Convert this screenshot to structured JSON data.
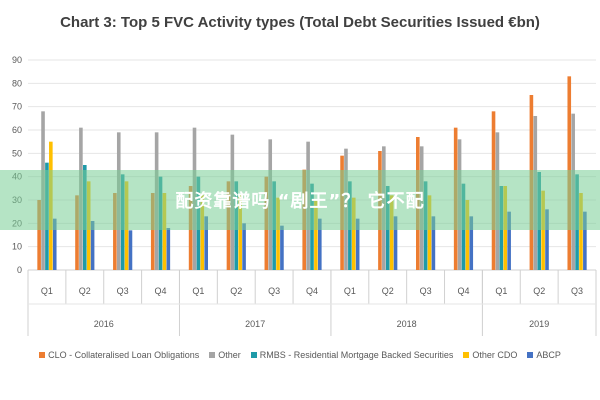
{
  "chart_data": {
    "type": "bar",
    "title": "Chart 3: Top 5 FVC Activity types (Total Debt Securities Issued €bn)",
    "categories": [
      "Q1",
      "Q2",
      "Q3",
      "Q4",
      "Q1",
      "Q2",
      "Q3",
      "Q4",
      "Q1",
      "Q2",
      "Q3",
      "Q4",
      "Q1",
      "Q2",
      "Q3"
    ],
    "years": [
      {
        "label": "2016",
        "span": 4
      },
      {
        "label": "2017",
        "span": 4
      },
      {
        "label": "2018",
        "span": 4
      },
      {
        "label": "2019",
        "span": 3
      }
    ],
    "ylim": [
      0,
      90
    ],
    "yticks": [
      0,
      10,
      20,
      30,
      40,
      50,
      60,
      70,
      80,
      90
    ],
    "grid": true,
    "legend_position": "bottom",
    "series": [
      {
        "name": "CLO - Collateralised Loan Obligations",
        "color": "#ED7D31",
        "values": [
          30,
          32,
          33,
          33,
          36,
          38,
          40,
          43,
          49,
          51,
          57,
          61,
          68,
          75,
          83
        ]
      },
      {
        "name": "Other",
        "color": "#A5A5A5",
        "values": [
          68,
          61,
          59,
          59,
          61,
          58,
          56,
          55,
          52,
          53,
          53,
          56,
          59,
          66,
          67
        ]
      },
      {
        "name": "RMBS - Residential Mortgage Backed Securities",
        "color": "#1F9AA8",
        "values": [
          46,
          45,
          41,
          40,
          40,
          38,
          38,
          37,
          38,
          36,
          38,
          37,
          36,
          42,
          41
        ]
      },
      {
        "name": "Other CDO",
        "color": "#FFC000",
        "values": [
          55,
          38,
          38,
          33,
          32,
          32,
          31,
          30,
          31,
          32,
          32,
          30,
          36,
          34,
          33
        ]
      },
      {
        "name": "ABCP",
        "color": "#4472C4",
        "values": [
          22,
          21,
          17,
          18,
          23,
          20,
          19,
          22,
          22,
          23,
          23,
          23,
          25,
          26,
          25
        ]
      }
    ]
  },
  "overlay_banner": "配资靠谱吗 “剧王”？ 它不配"
}
